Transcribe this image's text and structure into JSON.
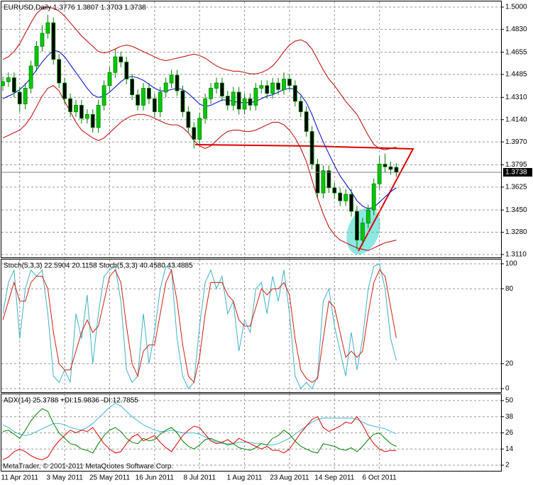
{
  "chart_data": [
    {
      "type": "candlestick",
      "title": "EURUSD,Daily  1.3776 1.3807 1.3703 1.3738",
      "categories": [
        null,
        null,
        null,
        "11 Apr 2011",
        null,
        null,
        null,
        null,
        null,
        null,
        null,
        "3 May 2011",
        null,
        null,
        null,
        null,
        null,
        null,
        null,
        "25 May 2011",
        null,
        null,
        null,
        null,
        null,
        null,
        null,
        "16 Jun 2011",
        null,
        null,
        null,
        null,
        null,
        null,
        null,
        "8 Jul 2011",
        null,
        null,
        null,
        null,
        null,
        null,
        null,
        "1 Aug 2011",
        null,
        null,
        null,
        null,
        null,
        null,
        null,
        "23 Aug 2011",
        null,
        null,
        null,
        null,
        null,
        null,
        null,
        "14 Sep 2011",
        null,
        null,
        null,
        null,
        null,
        null,
        null,
        "6 Oct 2011",
        null,
        null,
        null
      ],
      "open": [
        1.44,
        1.443,
        1.446,
        1.435,
        1.426,
        1.438,
        1.455,
        1.47,
        1.48,
        1.488,
        1.46,
        1.442,
        1.43,
        1.42,
        1.425,
        1.415,
        1.418,
        1.408,
        1.425,
        1.44,
        1.45,
        1.462,
        1.458,
        1.445,
        1.433,
        1.425,
        1.438,
        1.43,
        1.42,
        1.435,
        1.442,
        1.448,
        1.436,
        1.42,
        1.408,
        1.399,
        1.415,
        1.43,
        1.438,
        1.442,
        1.432,
        1.425,
        1.435,
        1.422,
        1.43,
        1.425,
        1.438,
        1.44,
        1.434,
        1.442,
        1.437,
        1.445,
        1.44,
        1.428,
        1.42,
        1.405,
        1.38,
        1.358,
        1.375,
        1.362,
        1.358,
        1.352,
        1.357,
        1.344,
        1.322,
        1.335,
        1.345,
        1.365,
        1.38,
        1.378,
        1.3776
      ],
      "high": [
        1.447,
        1.45,
        1.45,
        1.439,
        1.442,
        1.459,
        1.474,
        1.486,
        1.494,
        1.492,
        1.464,
        1.446,
        1.434,
        1.429,
        1.429,
        1.422,
        1.422,
        1.429,
        1.444,
        1.454,
        1.468,
        1.466,
        1.462,
        1.449,
        1.437,
        1.442,
        1.442,
        1.434,
        1.439,
        1.446,
        1.452,
        1.452,
        1.44,
        1.424,
        1.412,
        1.419,
        1.434,
        1.442,
        1.446,
        1.446,
        1.436,
        1.439,
        1.439,
        1.434,
        1.434,
        1.442,
        1.444,
        1.444,
        1.446,
        1.446,
        1.45,
        1.449,
        1.444,
        1.432,
        1.424,
        1.409,
        1.384,
        1.379,
        1.379,
        1.366,
        1.362,
        1.361,
        1.361,
        1.348,
        1.339,
        1.349,
        1.369,
        1.386,
        1.388,
        1.382,
        1.3807
      ],
      "low": [
        1.436,
        1.439,
        1.431,
        1.42,
        1.422,
        1.434,
        1.451,
        1.466,
        1.476,
        1.456,
        1.438,
        1.426,
        1.416,
        1.416,
        1.411,
        1.411,
        1.404,
        1.404,
        1.421,
        1.436,
        1.446,
        1.454,
        1.441,
        1.429,
        1.421,
        1.421,
        1.426,
        1.416,
        1.416,
        1.431,
        1.438,
        1.432,
        1.416,
        1.404,
        1.392,
        1.395,
        1.411,
        1.426,
        1.434,
        1.428,
        1.421,
        1.421,
        1.418,
        1.418,
        1.421,
        1.421,
        1.434,
        1.43,
        1.43,
        1.433,
        1.433,
        1.436,
        1.424,
        1.416,
        1.401,
        1.376,
        1.354,
        1.354,
        1.358,
        1.354,
        1.348,
        1.348,
        1.34,
        1.315,
        1.318,
        1.331,
        1.341,
        1.361,
        1.374,
        1.372,
        1.3703
      ],
      "close": [
        1.443,
        1.446,
        1.435,
        1.426,
        1.438,
        1.455,
        1.47,
        1.48,
        1.488,
        1.46,
        1.442,
        1.43,
        1.42,
        1.425,
        1.415,
        1.418,
        1.408,
        1.425,
        1.44,
        1.45,
        1.462,
        1.458,
        1.445,
        1.433,
        1.425,
        1.438,
        1.43,
        1.42,
        1.435,
        1.442,
        1.448,
        1.436,
        1.42,
        1.408,
        1.399,
        1.415,
        1.43,
        1.438,
        1.442,
        1.432,
        1.425,
        1.435,
        1.422,
        1.43,
        1.425,
        1.438,
        1.44,
        1.434,
        1.442,
        1.437,
        1.445,
        1.44,
        1.428,
        1.42,
        1.405,
        1.38,
        1.358,
        1.375,
        1.362,
        1.358,
        1.352,
        1.357,
        1.344,
        1.322,
        1.335,
        1.345,
        1.365,
        1.38,
        1.378,
        1.376,
        1.3738
      ],
      "up_color": "#00c800",
      "down_color": "#000000",
      "wick_color": "#008000",
      "series": [
        {
          "color": "#0000d0",
          "values": [
            1.43,
            1.432,
            1.434,
            1.437,
            1.441,
            1.446,
            1.452,
            1.458,
            1.463,
            1.467,
            1.466,
            1.462,
            1.456,
            1.45,
            1.444,
            1.438,
            1.433,
            1.431,
            1.432,
            1.435,
            1.439,
            1.443,
            1.446,
            1.447,
            1.446,
            1.444,
            1.441,
            1.438,
            1.436,
            1.436,
            1.437,
            1.438,
            1.437,
            1.434,
            1.43,
            1.426,
            1.424,
            1.425,
            1.427,
            1.429,
            1.429,
            1.428,
            1.427,
            1.427,
            1.427,
            1.428,
            1.43,
            1.432,
            1.433,
            1.435,
            1.437,
            1.438,
            1.437,
            1.433,
            1.427,
            1.418,
            1.407,
            1.397,
            1.388,
            1.379,
            1.371,
            1.365,
            1.359,
            1.352,
            1.348,
            1.346,
            1.347,
            1.351,
            1.355,
            1.359,
            1.362
          ]
        },
        {
          "color": "#c00000",
          "values": [
            1.46,
            1.462,
            1.466,
            1.472,
            1.48,
            1.488,
            1.495,
            1.499,
            1.5,
            1.499,
            1.497,
            1.493,
            1.488,
            1.483,
            1.478,
            1.474,
            1.47,
            1.466,
            1.465,
            1.466,
            1.468,
            1.47,
            1.471,
            1.47,
            1.468,
            1.466,
            1.464,
            1.462,
            1.46,
            1.459,
            1.46,
            1.461,
            1.462,
            1.463,
            1.464,
            1.463,
            1.461,
            1.458,
            1.455,
            1.453,
            1.452,
            1.451,
            1.451,
            1.45,
            1.449,
            1.449,
            1.45,
            1.452,
            1.455,
            1.46,
            1.466,
            1.471,
            1.474,
            1.475,
            1.473,
            1.468,
            1.46,
            1.452,
            1.445,
            1.44,
            1.434,
            1.428,
            1.423,
            1.418,
            1.41,
            1.402,
            1.395,
            1.392,
            1.391,
            1.392,
            1.393
          ]
        },
        {
          "color": "#c00000",
          "values": [
            1.4,
            1.402,
            1.404,
            1.406,
            1.41,
            1.416,
            1.424,
            1.432,
            1.438,
            1.44,
            1.436,
            1.428,
            1.42,
            1.412,
            1.406,
            1.403,
            1.4,
            1.398,
            1.4,
            1.404,
            1.408,
            1.412,
            1.415,
            1.417,
            1.418,
            1.418,
            1.417,
            1.415,
            1.413,
            1.411,
            1.41,
            1.41,
            1.408,
            1.404,
            1.398,
            1.394,
            1.392,
            1.394,
            1.398,
            1.402,
            1.405,
            1.406,
            1.406,
            1.405,
            1.405,
            1.406,
            1.408,
            1.41,
            1.412,
            1.412,
            1.41,
            1.406,
            1.4,
            1.392,
            1.382,
            1.368,
            1.354,
            1.342,
            1.332,
            1.326,
            1.322,
            1.32,
            1.318,
            1.316,
            1.315,
            1.314,
            1.316,
            1.318,
            1.32,
            1.321,
            1.322
          ]
        }
      ],
      "ylim": [
        1.3088,
        1.5043
      ],
      "yticks": [
        {
          "value": 1.5,
          "label": "1.5000"
        },
        {
          "value": 1.483,
          "label": "1.4830"
        },
        1.4655,
        1.4485,
        {
          "value": 1.431,
          "label": "1.4310"
        },
        {
          "value": 1.414,
          "label": "1.4140"
        },
        {
          "value": 1.397,
          "label": "1.3970"
        },
        1.3795,
        1.3625,
        {
          "value": 1.345,
          "label": "1.3450"
        },
        {
          "value": 1.328,
          "label": "1.3280"
        },
        {
          "value": 1.311,
          "label": "1.3110"
        }
      ],
      "grid": true
    },
    {
      "type": "line",
      "title": "Stoch(5,3,3) 22.5904 20.1158  Stoch(5,3,3) 40.4580 43.4885",
      "series": [
        {
          "color": "#40b0c8",
          "values": [
            60,
            85,
            95,
            40,
            80,
            95,
            90,
            95,
            60,
            10,
            5,
            15,
            5,
            60,
            40,
            75,
            20,
            60,
            90,
            95,
            98,
            70,
            15,
            5,
            10,
            60,
            20,
            45,
            80,
            98,
            95,
            40,
            10,
            0,
            5,
            50,
            85,
            95,
            80,
            90,
            60,
            70,
            30,
            55,
            45,
            80,
            85,
            60,
            90,
            70,
            95,
            60,
            10,
            0,
            5,
            0,
            10,
            70,
            80,
            50,
            30,
            10,
            45,
            15,
            40,
            80,
            98,
            100,
            80,
            40,
            22.5904
          ]
        },
        {
          "color": "#d02010",
          "values": [
            55,
            70,
            85,
            70,
            70,
            85,
            90,
            90,
            80,
            45,
            20,
            15,
            15,
            30,
            45,
            55,
            45,
            50,
            70,
            90,
            95,
            85,
            50,
            20,
            10,
            30,
            35,
            35,
            60,
            85,
            95,
            70,
            35,
            10,
            5,
            25,
            60,
            85,
            85,
            85,
            75,
            70,
            55,
            50,
            50,
            65,
            80,
            75,
            80,
            80,
            85,
            75,
            40,
            15,
            8,
            5,
            8,
            40,
            70,
            65,
            45,
            25,
            30,
            25,
            30,
            60,
            85,
            95,
            90,
            65,
            40.458
          ]
        }
      ],
      "ylim": [
        -2.8,
        103.4
      ],
      "yticks": [
        0,
        20,
        80,
        100
      ],
      "grid": true
    },
    {
      "type": "line",
      "title": "ADX(14) 25.3788 +DI:15.9836 -DI:12.7855",
      "series": [
        {
          "color": "#40b8d8",
          "values": [
            32,
            30,
            27,
            25,
            24,
            25,
            27,
            29,
            31,
            33,
            33,
            32,
            30,
            29,
            28,
            30,
            33,
            37,
            41,
            45,
            48,
            46,
            42,
            38,
            35,
            32,
            30,
            28,
            27,
            27,
            28,
            27,
            26,
            26,
            26,
            25,
            23,
            21,
            19,
            18,
            18,
            18,
            19,
            19,
            19,
            18,
            18,
            17,
            17,
            18,
            20,
            22,
            25,
            28,
            31,
            34,
            36,
            37,
            37,
            37,
            37,
            37,
            37,
            36,
            34,
            32,
            31,
            30,
            29,
            27,
            25.3788
          ]
        },
        {
          "color": "#008000",
          "values": [
            27,
            28,
            25,
            22,
            28,
            35,
            40,
            44,
            42,
            33,
            26,
            22,
            18,
            17,
            14,
            13,
            11,
            18,
            24,
            28,
            30,
            27,
            22,
            19,
            18,
            22,
            20,
            21,
            25,
            28,
            30,
            26,
            20,
            16,
            14,
            17,
            21,
            22,
            20,
            19,
            17,
            18,
            15,
            14,
            13,
            15,
            18,
            17,
            22,
            24,
            28,
            25,
            20,
            16,
            14,
            12,
            11,
            18,
            17,
            16,
            14,
            13,
            15,
            12,
            16,
            21,
            25,
            26,
            22,
            18,
            15.9836
          ]
        },
        {
          "color": "#e00000",
          "values": [
            6,
            8,
            12,
            14,
            12,
            9,
            7,
            6,
            8,
            15,
            20,
            24,
            28,
            26,
            28,
            27,
            30,
            24,
            18,
            14,
            11,
            12,
            18,
            23,
            25,
            20,
            22,
            24,
            19,
            15,
            12,
            18,
            24,
            28,
            31,
            30,
            25,
            20,
            18,
            19,
            21,
            18,
            22,
            20,
            18,
            16,
            14,
            16,
            13,
            13,
            11,
            14,
            20,
            26,
            31,
            36,
            38,
            30,
            27,
            29,
            31,
            34,
            33,
            38,
            32,
            24,
            18,
            14,
            12,
            13,
            12.7855
          ]
        }
      ],
      "ylim": [
        -2.2,
        54.7
      ],
      "yticks": [
        2,
        14,
        26,
        38,
        50
      ],
      "grid": true
    }
  ],
  "footer": "MetaTrader, © 2001-2011 MetaQuotes Software Corp."
}
